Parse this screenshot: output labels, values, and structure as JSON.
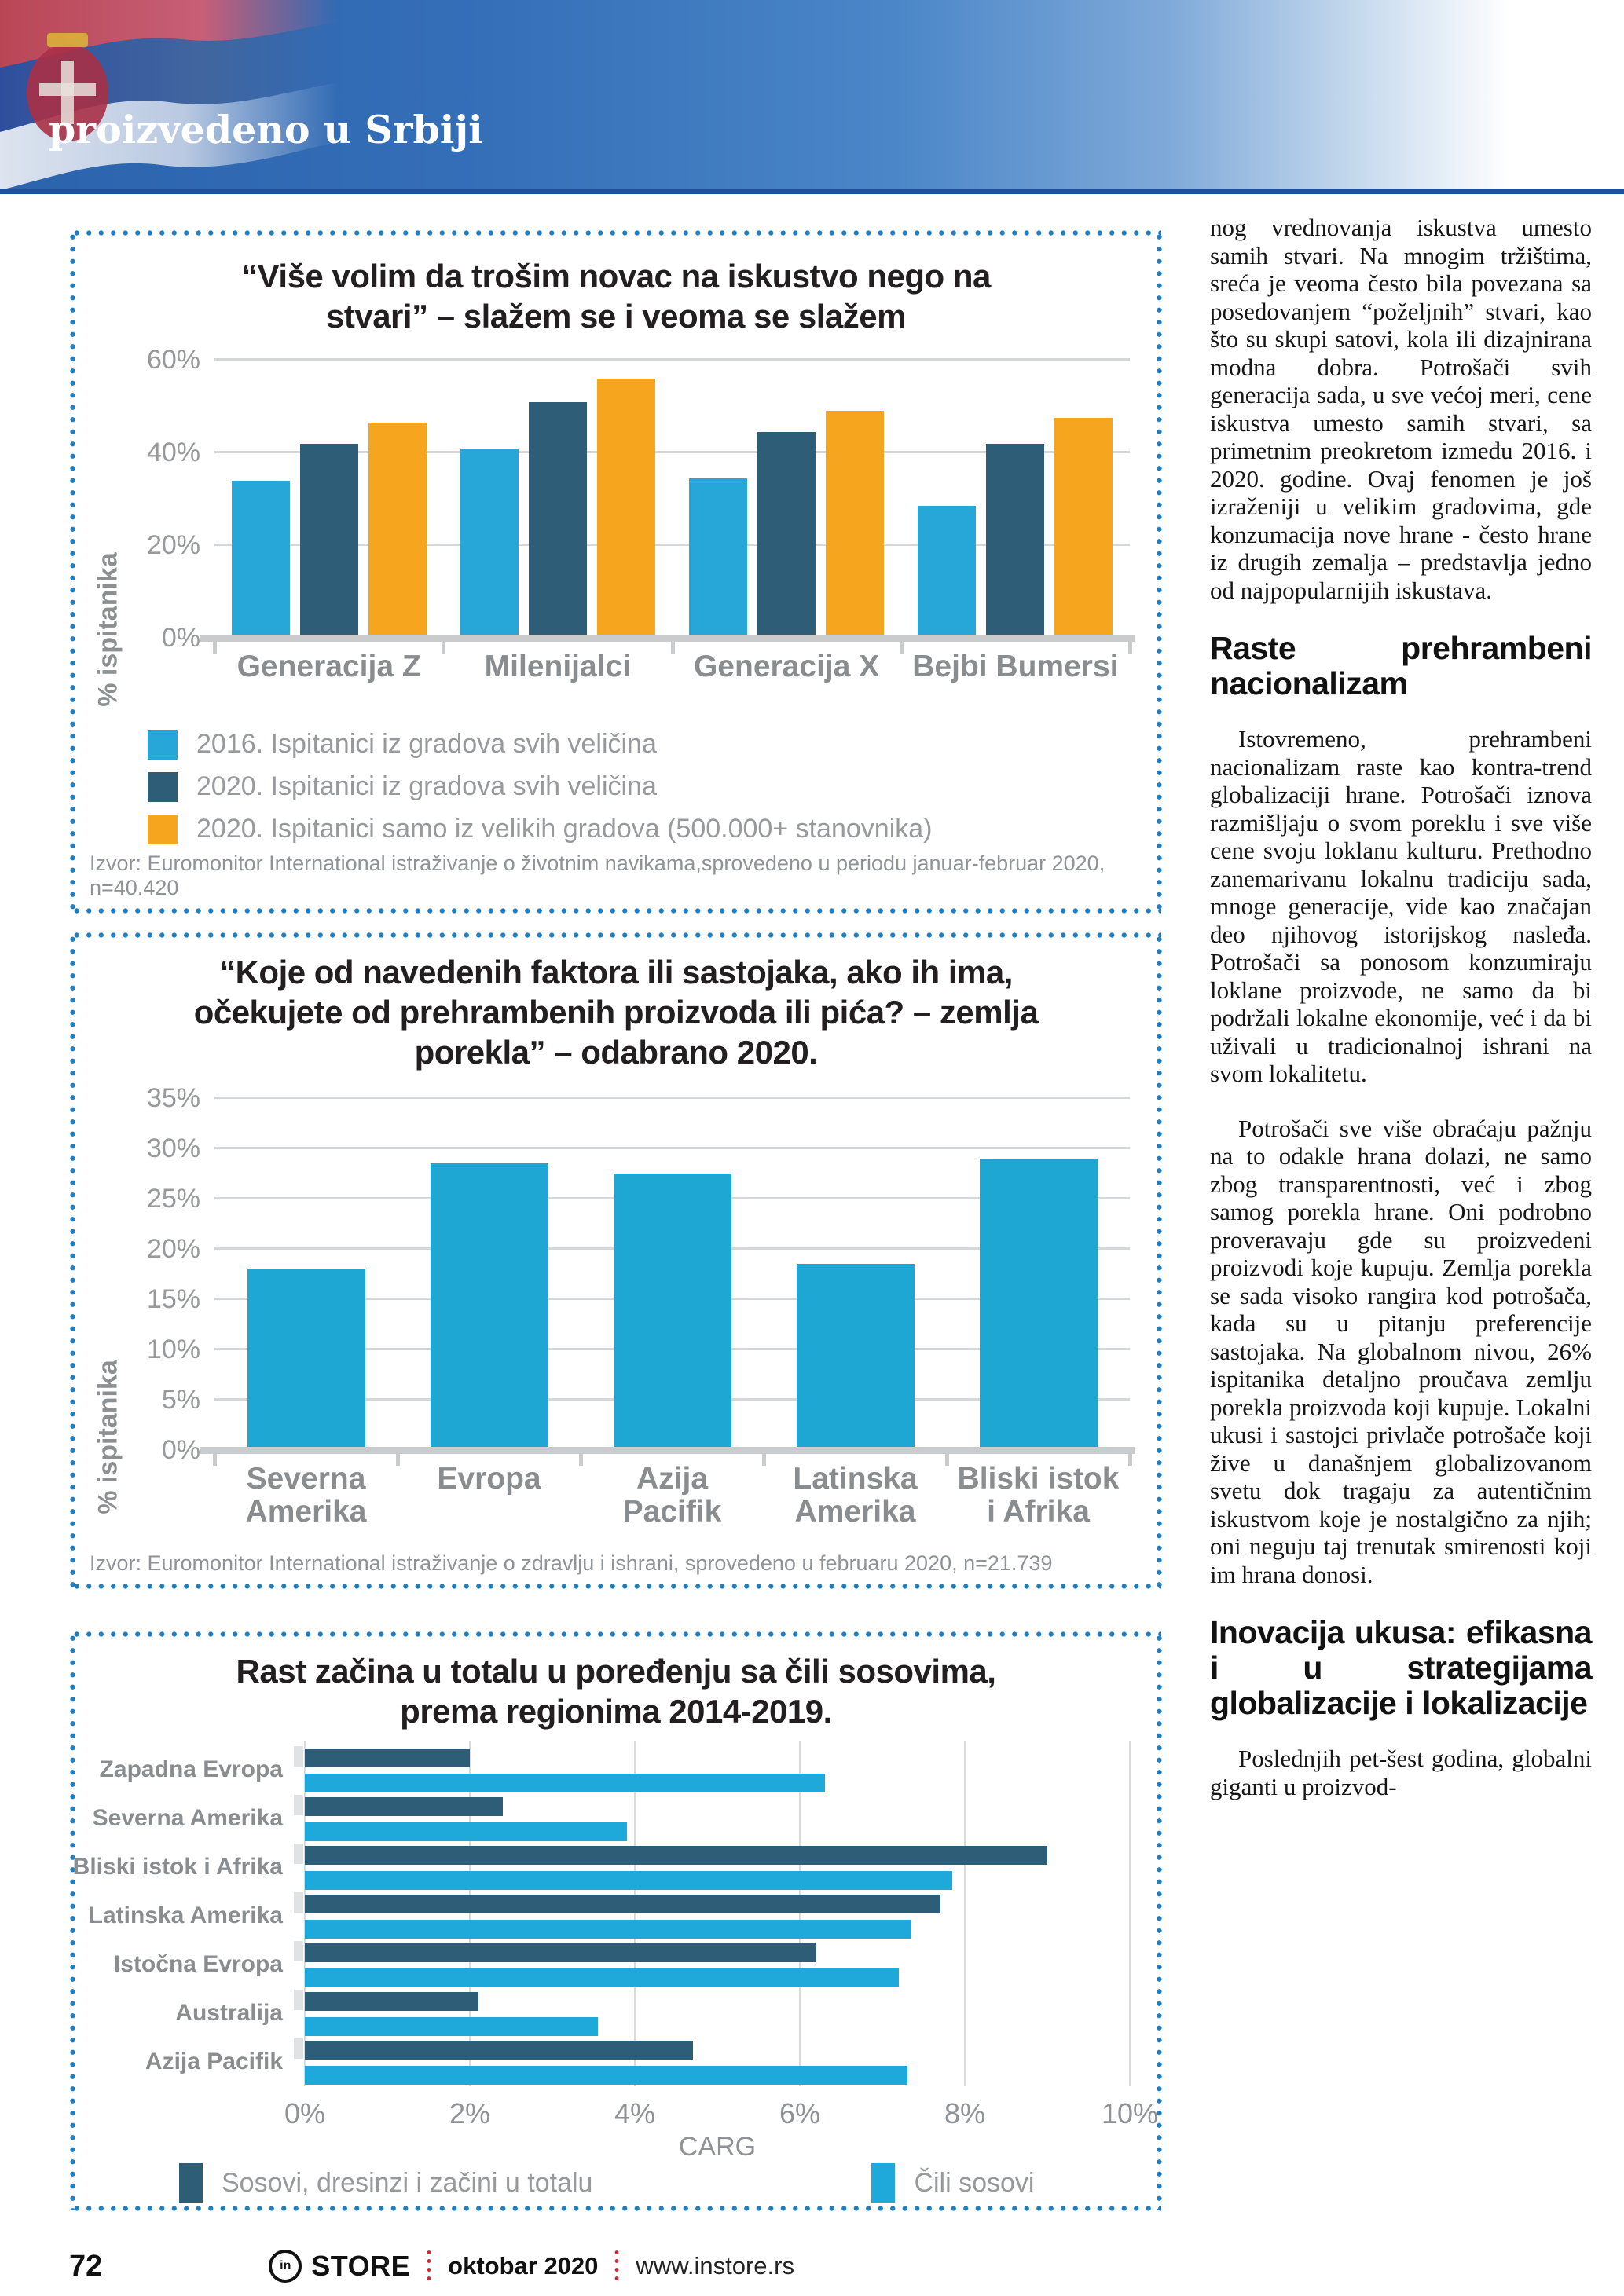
{
  "header": {
    "title": "proizvedeno u Srbiji"
  },
  "chart_data": [
    {
      "type": "bar",
      "title": "“Više volim da trošim novac na iskustvo nego na stvari” – slažem se i veoma se slažem",
      "ylabel": "% ispitanika",
      "ylim": [
        0,
        60
      ],
      "yticks": [
        0,
        20,
        40,
        60
      ],
      "grid": true,
      "legend_position": "bottom-left",
      "categories": [
        "Generacija Z",
        "Milenijalci",
        "Generacija X",
        "Bejbi Bumersi"
      ],
      "series": [
        {
          "name": "2016. Ispitanici iz gradova svih veličina",
          "color": "#27a6d8",
          "values": [
            34,
            41,
            34.5,
            28.5
          ]
        },
        {
          "name": "2020. Ispitanici iz gradova svih veličina",
          "color": "#2e5d78",
          "values": [
            42,
            51,
            44.5,
            42
          ]
        },
        {
          "name": "2020. Ispitanici samo iz velikih gradova (500.000+ stanovnika)",
          "color": "#f6a51f",
          "values": [
            46.5,
            56,
            49,
            47.5
          ]
        }
      ],
      "source": "Izvor: Euromonitor International istraživanje o životnim navikama,sprovedeno u periodu januar-februar 2020, n=40.420"
    },
    {
      "type": "bar",
      "title": "“Koje od navedenih faktora ili sastojaka, ako ih ima, očekujete od prehrambenih proizvoda ili pića? – zemlja porekla” – odabrano 2020.",
      "ylabel": "% ispitanika",
      "ylim": [
        0,
        35
      ],
      "yticks": [
        0,
        5,
        10,
        15,
        20,
        25,
        30,
        35
      ],
      "grid": true,
      "color": "#1ea7d3",
      "categories": [
        "Severna\nAmerika",
        "Evropa",
        "Azija\nPacifik",
        "Latinska\nAmerika",
        "Bliski istok\ni Afrika"
      ],
      "values": [
        18,
        28.5,
        27.5,
        18.5,
        29
      ],
      "source": "Izvor: Euromonitor International istraživanje o zdravlju i ishrani, sprovedeno u februaru 2020, n=21.739"
    },
    {
      "type": "bar-horizontal",
      "title": "Rast začina u totalu u poređenju sa čili sosovima, prema regionima 2014-2019.",
      "xlabel": "CARG",
      "xlim": [
        0,
        10
      ],
      "xticks": [
        0,
        2,
        4,
        6,
        8,
        10
      ],
      "grid": true,
      "legend_position": "bottom",
      "categories": [
        "Zapadna Evropa",
        "Severna Amerika",
        "Bliski istok i Afrika",
        "Latinska Amerika",
        "Istočna Evropa",
        "Australija",
        "Azija Pacifik"
      ],
      "series": [
        {
          "name": "Sosovi, dresinzi i začini u totalu",
          "color": "#2e5d78",
          "values": [
            2.0,
            2.4,
            9.0,
            7.7,
            6.2,
            2.1,
            4.7
          ]
        },
        {
          "name": "Čili sosovi",
          "color": "#1fa9da",
          "values": [
            6.3,
            3.9,
            7.85,
            7.35,
            7.2,
            3.55,
            7.3
          ]
        }
      ]
    }
  ],
  "article": {
    "blocks": [
      {
        "type": "p",
        "text": "nog vrednovanja iskustva umesto samih stvari. Na mnogim tržištima, sreća je veoma često bila povezana sa posedovanjem “poželjnih” stvari, kao što su skupi satovi, kola ili dizajnirana modna dobra. Potrošači svih generacija sada, u sve većoj meri, cene iskustva umesto samih stvari, sa primetnim preokretom između 2016. i 2020. godine. Ovaj fenomen je još izraženiji u velikim gradovima, gde konzumacija nove hrane - često hrane iz drugih zemalja – predstavlja jedno od najpopularnijih iskustava."
      },
      {
        "type": "h",
        "text": "Raste prehrambeni nacionalizam"
      },
      {
        "type": "p",
        "text": "Istovremeno, prehrambeni nacionalizam raste kao kontra-trend globalizaciji hrane. Potrošači iznova razmišljaju o svom poreklu i sve više cene svoju loklanu kulturu. Prethodno zanemarivanu lokalnu tradiciju sada, mnoge generacije, vide kao značajan deo njihovog istorijskog nasleđa. Potrošači sa ponosom konzumiraju loklane proizvode, ne samo da bi podržali lokalne ekonomije, već i da bi uživali u tradicionalnoj ishrani na svom lokalitetu."
      },
      {
        "type": "p",
        "text": "Potrošači sve više obraćaju pažnju na to odakle hrana dolazi, ne samo zbog transparentnosti, već i zbog samog porekla hrane. Oni podrobno proveravaju gde su proizvedeni proizvodi koje kupuju. Zemlja porekla se sada visoko rangira kod potrošača, kada su u pitanju preferencije sastojaka. Na globalnom nivou, 26% ispitanika detaljno proučava zemlju porekla proizvoda koji kupuje. Lokalni ukusi i sastojci privlače potrošače koji žive u današnjem globalizovanom svetu dok tragaju za autentičnim iskustvom koje je nostalgično za njih; oni neguju taj trenutak smirenosti koji im hrana donosi."
      },
      {
        "type": "h",
        "text": "Inovacija ukusa: efikasna i u strategijama globalizacije i lokalizacije"
      },
      {
        "type": "p",
        "text": "Poslednjih pet-šest godina, globalni giganti u proizvod-"
      }
    ]
  },
  "footer": {
    "page_number": "72",
    "brand_circle": "in",
    "brand": "STORE",
    "issue": "oktobar 2020",
    "website": "www.instore.rs"
  }
}
